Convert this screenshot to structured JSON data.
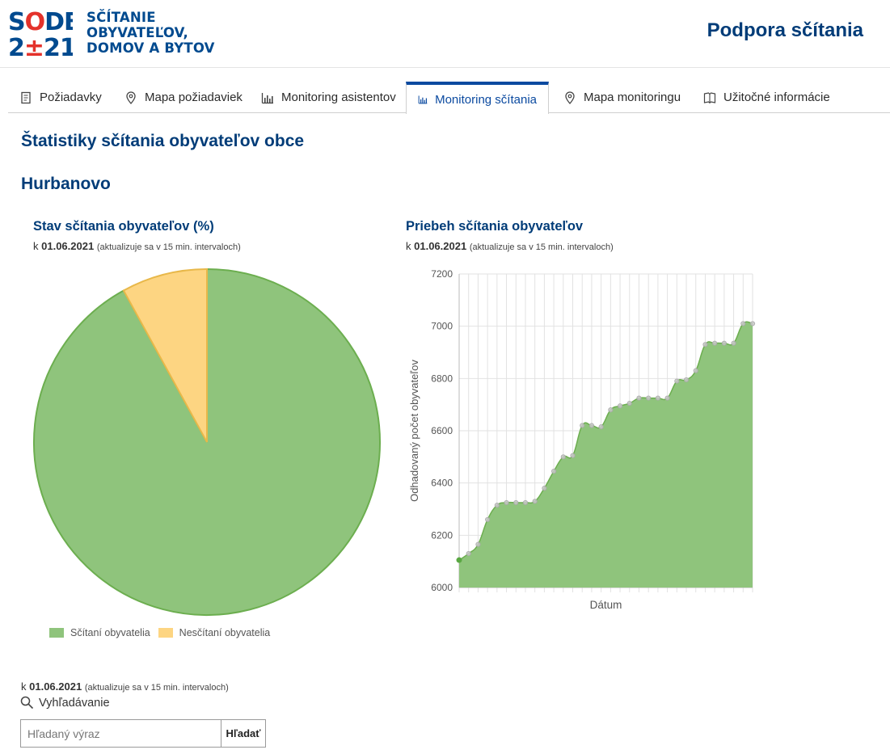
{
  "header": {
    "logo_top": "SODB",
    "logo_bottom": "2±21",
    "logo_lines": [
      "SČÍTANIE",
      "OBYVATEĽOV,",
      "DOMOV A BYTOV"
    ],
    "site_title": "Podpora sčítania"
  },
  "tabs": [
    {
      "label": "Požiadavky",
      "icon": "document-icon",
      "active": false
    },
    {
      "label": "Mapa požiadaviek",
      "icon": "map-pin-icon",
      "active": false
    },
    {
      "label": "Monitoring asistentov",
      "icon": "bar-chart-icon",
      "active": false
    },
    {
      "label": "Monitoring sčítania",
      "icon": "bar-chart-icon",
      "active": true
    },
    {
      "label": "Mapa monitoringu",
      "icon": "map-pin-icon",
      "active": false
    },
    {
      "label": "Užitočné informácie",
      "icon": "book-icon",
      "active": false
    }
  ],
  "page_title": "Štatistiky sčítania obyvateľov obce",
  "town": "Hurbanovo",
  "asof": {
    "prefix": "k",
    "date": "01.06.2021",
    "note": "(aktualizuje sa v 15 min. intervaloch)"
  },
  "chart_data": [
    {
      "type": "pie",
      "title": "Stav sčítania obyvateľov (%)",
      "labels": [
        "Sčítaní obyvatelia",
        "Nesčítaní obyvatelia"
      ],
      "values": [
        92,
        8
      ],
      "colors": [
        "#8fc47c",
        "#fdd582"
      ],
      "border_colors": [
        "#6cae4f",
        "#e8b84a"
      ],
      "legend": "bottom-left"
    },
    {
      "type": "area",
      "title": "Priebeh sčítania obyvateľov",
      "xlabel": "Dátum",
      "ylabel": "Odhadovaný počet obyvateľov",
      "ylim": [
        6000,
        7200
      ],
      "yticks": [
        6000,
        6200,
        6400,
        6600,
        6800,
        7000,
        7200
      ],
      "color": "#6cae4f",
      "fill": "#8fc47c",
      "grid": true,
      "values": [
        6105,
        6130,
        6165,
        6260,
        6315,
        6325,
        6325,
        6325,
        6330,
        6380,
        6445,
        6500,
        6505,
        6620,
        6620,
        6615,
        6680,
        6695,
        6705,
        6725,
        6725,
        6725,
        6725,
        6790,
        6795,
        6830,
        6930,
        6935,
        6935,
        6935,
        7010,
        7010
      ]
    }
  ],
  "search": {
    "label": "Vyhľadávanie",
    "placeholder": "Hľadaný výraz",
    "button": "Hľadať"
  }
}
